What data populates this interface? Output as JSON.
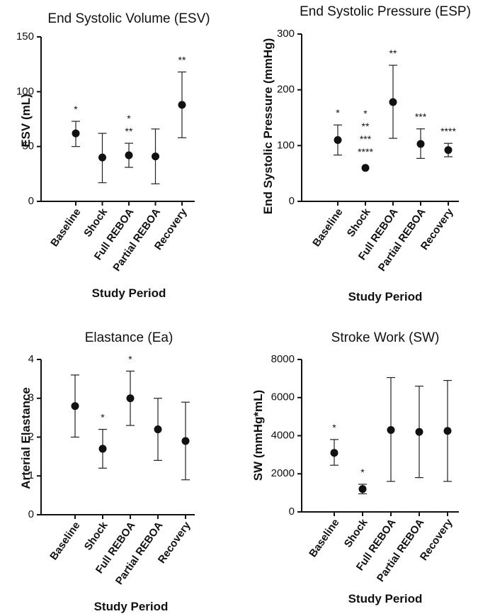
{
  "chart_data": [
    {
      "type": "scatter",
      "title": "End Systolic Volume (ESV)",
      "ylabel": "ESV (mL)",
      "xlabel": "Study Period",
      "ylim": [
        0,
        150
      ],
      "yticks": [
        0,
        50,
        100,
        150
      ],
      "categories": [
        "Baseline",
        "Shock",
        "Full REBOA",
        "Partial REBOA",
        "Recovery"
      ],
      "values": [
        62,
        40,
        42,
        41,
        88
      ],
      "err_low": [
        50,
        17,
        31,
        16,
        58
      ],
      "err_high": [
        73,
        62,
        53,
        66,
        118
      ],
      "annotations": [
        [
          "*"
        ],
        [],
        [
          "*",
          "**"
        ],
        [],
        [
          "**"
        ]
      ]
    },
    {
      "type": "scatter",
      "title": "End Systolic Pressure (ESP)",
      "ylabel": "End Systolic Pressure (mmHg)",
      "xlabel": "Study Period",
      "ylim": [
        0,
        300
      ],
      "yticks": [
        0,
        100,
        200,
        300
      ],
      "categories": [
        "Baseline",
        "Shock",
        "Full REBOA",
        "Partial REBOA",
        "Recovery"
      ],
      "values": [
        110,
        60,
        178,
        103,
        92
      ],
      "err_low": [
        83,
        60,
        113,
        77,
        80
      ],
      "err_high": [
        137,
        60,
        244,
        130,
        104
      ],
      "annotations": [
        [
          "*"
        ],
        [
          "*",
          "**",
          "***",
          "****"
        ],
        [
          "**"
        ],
        [
          "***"
        ],
        [
          "****"
        ]
      ]
    },
    {
      "type": "scatter",
      "title": "Elastance (Ea)",
      "ylabel": "Arterial  Elastance",
      "xlabel": "Study Period",
      "ylim": [
        0,
        4
      ],
      "yticks": [
        0,
        1,
        2,
        3,
        4
      ],
      "categories": [
        "Baseline",
        "Shock",
        "Full REBOA",
        "Partial REBOA",
        "Recovery"
      ],
      "values": [
        2.8,
        1.7,
        3.0,
        2.2,
        1.9
      ],
      "err_low": [
        2.0,
        1.2,
        2.3,
        1.4,
        0.9
      ],
      "err_high": [
        3.6,
        2.2,
        3.7,
        3.0,
        2.9
      ],
      "annotations": [
        [],
        [
          "*"
        ],
        [
          "*"
        ],
        [],
        []
      ]
    },
    {
      "type": "scatter",
      "title": "Stroke Work (SW)",
      "ylabel": "SW  (mmHg*mL)",
      "xlabel": "Study Period",
      "ylim": [
        0,
        8000
      ],
      "yticks": [
        0,
        2000,
        4000,
        6000,
        8000
      ],
      "categories": [
        "Baseline",
        "Shock",
        "Full REBOA",
        "Partial REBOA",
        "Recovery"
      ],
      "values": [
        3100,
        1200,
        4300,
        4200,
        4250
      ],
      "err_low": [
        2450,
        950,
        1600,
        1800,
        1600
      ],
      "err_high": [
        3800,
        1450,
        7050,
        6600,
        6900
      ],
      "annotations": [
        [
          "*"
        ],
        [
          "*"
        ],
        [],
        [],
        []
      ]
    }
  ]
}
